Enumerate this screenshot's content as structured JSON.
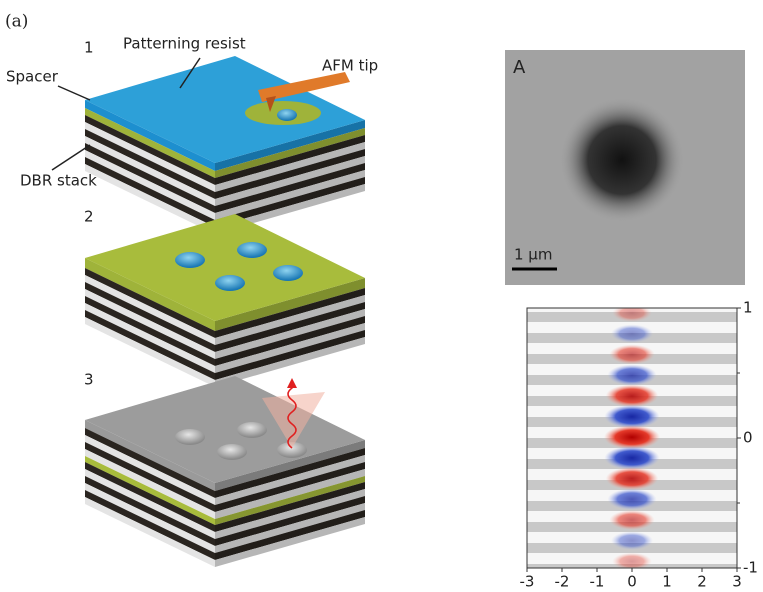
{
  "panel_label": "(a)",
  "steps": [
    "1",
    "2",
    "3"
  ],
  "labels": {
    "patterning_resist": "Patterning resist",
    "afm_tip": "AFM tip",
    "spacer": "Spacer",
    "dbr_stack": "DBR stack"
  },
  "micrograph": {
    "label": "A",
    "scale_bar": "1 μm"
  },
  "field_plot": {
    "xlim": [
      -3,
      3
    ],
    "xticks": [
      -3,
      -2,
      -1,
      0,
      1,
      2,
      3
    ],
    "ylim": [
      -1,
      1
    ],
    "yticks": [
      1,
      0,
      -1
    ]
  }
}
